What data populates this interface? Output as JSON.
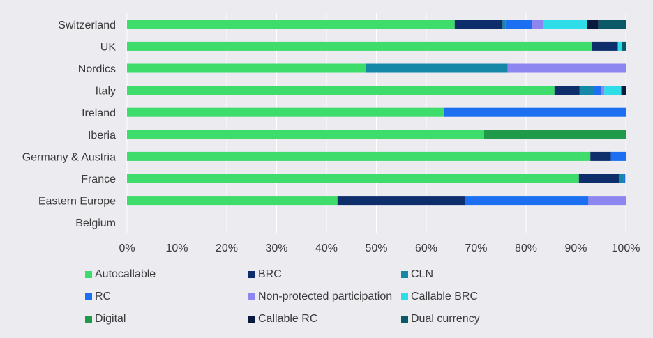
{
  "chart_data": {
    "type": "bar",
    "orientation": "horizontal",
    "stacked": true,
    "categories": [
      "Switzerland",
      "UK",
      "Nordics",
      "Italy",
      "Ireland",
      "Iberia",
      "Germany & Austria",
      "France",
      "Eastern Europe",
      "Belgium"
    ],
    "xlim": [
      0,
      100
    ],
    "xticks": [
      "0%",
      "10%",
      "20%",
      "30%",
      "40%",
      "50%",
      "60%",
      "70%",
      "80%",
      "90%",
      "100%"
    ],
    "grid": "vertical",
    "legend_position": "bottom",
    "series": [
      {
        "name": "Autocallable",
        "color": "#3ddc6b",
        "values": [
          65.7,
          93.2,
          47.9,
          85.7,
          63.5,
          71.6,
          92.9,
          90.6,
          42.2,
          0
        ]
      },
      {
        "name": "BRC",
        "color": "#0d2d6b",
        "values": [
          9.6,
          5.2,
          0,
          5.0,
          0,
          0,
          4.1,
          8.0,
          25.5,
          0
        ]
      },
      {
        "name": "CLN",
        "color": "#1588a8",
        "values": [
          0.6,
          0,
          28.4,
          2.8,
          0,
          0,
          0,
          0.9,
          0,
          0
        ]
      },
      {
        "name": "RC",
        "color": "#1b6ff0",
        "values": [
          5.3,
          0,
          0,
          1.6,
          36.5,
          0,
          3.0,
          0.4,
          24.8,
          0
        ]
      },
      {
        "name": "Non-protected participation",
        "color": "#8e86f0",
        "values": [
          2.2,
          0,
          23.7,
          0.6,
          0,
          0,
          0,
          0,
          7.5,
          0
        ]
      },
      {
        "name": "Callable BRC",
        "color": "#2fdde8",
        "values": [
          8.9,
          0.9,
          0,
          3.4,
          0,
          0,
          0,
          0,
          0,
          0
        ]
      },
      {
        "name": "Digital",
        "color": "#1e9a48",
        "values": [
          0,
          0,
          0,
          0,
          0,
          28.4,
          0,
          0,
          0,
          0
        ]
      },
      {
        "name": "Callable RC",
        "color": "#0a1a3d",
        "values": [
          2.2,
          0,
          0,
          0.9,
          0,
          0,
          0,
          0,
          0,
          0
        ]
      },
      {
        "name": "Dual currency",
        "color": "#0b5866",
        "values": [
          5.5,
          0.7,
          0,
          0,
          0,
          0,
          0,
          0,
          0,
          0
        ]
      }
    ]
  }
}
